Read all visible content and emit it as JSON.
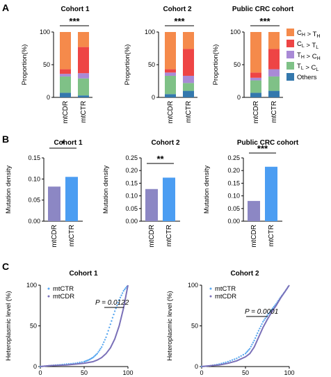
{
  "panels": {
    "A": {
      "label": "A",
      "legend": [
        {
          "main": "C",
          "sub": "H",
          "op": " > ",
          "main2": "T",
          "sub2": "H",
          "color": "#f58a4b"
        },
        {
          "main": "C",
          "sub": "L",
          "op": " > ",
          "main2": "T",
          "sub2": "L",
          "color": "#ee4545"
        },
        {
          "main": "T",
          "sub": "H",
          "op": " > ",
          "main2": "C",
          "sub2": "H",
          "color": "#a98ad6"
        },
        {
          "main": "T",
          "sub": "L",
          "op": " > ",
          "main2": "C",
          "sub2": "L",
          "color": "#7fc187"
        },
        {
          "text": "Others",
          "color": "#3478ad"
        }
      ]
    },
    "B": {
      "label": "B"
    },
    "C": {
      "label": "C"
    }
  },
  "chart_data": [
    {
      "type": "bar",
      "stacked": true,
      "title": "Cohort 1",
      "ylabel": "Proportion(%)",
      "ylim": [
        0,
        100
      ],
      "yticks": [
        "0",
        "50",
        "100"
      ],
      "categories": [
        "mtCDR",
        "mtCTR"
      ],
      "significance": "***",
      "series": [
        {
          "name": "Others",
          "values": [
            7,
            3
          ]
        },
        {
          "name": "TL > CL",
          "values": [
            25,
            26
          ]
        },
        {
          "name": "TH > CH",
          "values": [
            4,
            8
          ]
        },
        {
          "name": "CL > TL",
          "values": [
            7,
            40
          ]
        },
        {
          "name": "CH > TH",
          "values": [
            57,
            23
          ]
        }
      ]
    },
    {
      "type": "bar",
      "stacked": true,
      "title": "Cohort 2",
      "ylabel": "Proportion(%)",
      "ylim": [
        0,
        100
      ],
      "yticks": [
        "0",
        "50",
        "100"
      ],
      "categories": [
        "mtCDR",
        "mtCTR"
      ],
      "significance": "***",
      "series": [
        {
          "name": "Others",
          "values": [
            5,
            10
          ]
        },
        {
          "name": "TL > CL",
          "values": [
            28,
            12
          ]
        },
        {
          "name": "TH > CH",
          "values": [
            5,
            11
          ]
        },
        {
          "name": "CL > TL",
          "values": [
            5,
            41
          ]
        },
        {
          "name": "CH > TH",
          "values": [
            57,
            26
          ]
        }
      ]
    },
    {
      "type": "bar",
      "stacked": true,
      "title": "Public CRC cohort",
      "ylabel": "Proportion(%)",
      "ylim": [
        0,
        100
      ],
      "yticks": [
        "0",
        "50",
        "100"
      ],
      "categories": [
        "mtCDR",
        "mtCTR"
      ],
      "significance": "***",
      "series": [
        {
          "name": "Others",
          "values": [
            7,
            10
          ]
        },
        {
          "name": "TL > CL",
          "values": [
            19,
            22
          ]
        },
        {
          "name": "TH > CH",
          "values": [
            4,
            11
          ]
        },
        {
          "name": "CL > TL",
          "values": [
            8,
            31
          ]
        },
        {
          "name": "CH > TH",
          "values": [
            62,
            26
          ]
        }
      ]
    },
    {
      "type": "bar",
      "title": "Cohort 1",
      "ylabel": "Mutation density",
      "ylim": [
        0,
        0.15
      ],
      "yticks": [
        "0.00",
        "0.05",
        "0.10",
        "0.15"
      ],
      "categories": [
        "mtCDR",
        "mtCTR"
      ],
      "values": [
        0.082,
        0.105
      ],
      "colors": [
        "#8c87c4",
        "#4b9df2"
      ],
      "significance": "*"
    },
    {
      "type": "bar",
      "title": "Cohort 2",
      "ylabel": "Mutation density",
      "ylim": [
        0,
        0.25
      ],
      "yticks": [
        "0.00",
        "0.05",
        "0.10",
        "0.15",
        "0.20",
        "0.25"
      ],
      "categories": [
        "mtCDR",
        "mtCTR"
      ],
      "values": [
        0.127,
        0.172
      ],
      "colors": [
        "#8c87c4",
        "#4b9df2"
      ],
      "significance": "**"
    },
    {
      "type": "bar",
      "title": "Public CRC cohort",
      "ylabel": "Mutation density",
      "ylim": [
        0,
        0.25
      ],
      "yticks": [
        "0.00",
        "0.05",
        "0.10",
        "0.15",
        "0.20",
        "0.25"
      ],
      "categories": [
        "mtCDR",
        "mtCTR"
      ],
      "values": [
        0.08,
        0.215
      ],
      "colors": [
        "#8c87c4",
        "#4b9df2"
      ],
      "significance": "***"
    },
    {
      "type": "line",
      "title": "Cohort 1",
      "xlabel": [
        "Cumulative fraction",
        "of mutations (%)"
      ],
      "ylabel": "Heteroplasmic level (%)",
      "xlim": [
        0,
        100
      ],
      "ylim": [
        0,
        100
      ],
      "xticks": [
        "0",
        "50",
        "100"
      ],
      "yticks": [
        "0",
        "50",
        "100"
      ],
      "pvalue": "P = 0.0122",
      "series": [
        {
          "name": "mtCTR",
          "style": "dots",
          "color": "#5aa8f0",
          "x": [
            0,
            10,
            20,
            30,
            40,
            50,
            55,
            60,
            65,
            70,
            75,
            80,
            85,
            90,
            95,
            100
          ],
          "y": [
            0,
            1,
            2,
            3,
            4,
            6,
            8,
            11,
            16,
            24,
            36,
            52,
            68,
            82,
            93,
            100
          ]
        },
        {
          "name": "mtCDR",
          "style": "line",
          "color": "#7a70b8",
          "x": [
            0,
            10,
            20,
            30,
            40,
            50,
            55,
            60,
            65,
            70,
            75,
            80,
            85,
            90,
            95,
            100
          ],
          "y": [
            0,
            1,
            1.5,
            2,
            3,
            4,
            5,
            6,
            8,
            11,
            16,
            23,
            34,
            50,
            72,
            100
          ]
        }
      ]
    },
    {
      "type": "line",
      "title": "Cohort 2",
      "xlabel": [
        "Cumulative fraction",
        "of mutations (%)"
      ],
      "ylabel": "Heteroplasmic level (%)",
      "xlim": [
        0,
        100
      ],
      "ylim": [
        0,
        100
      ],
      "xticks": [
        "0",
        "50",
        "100"
      ],
      "yticks": [
        "0",
        "50",
        "100"
      ],
      "pvalue": "P = 0.0001",
      "series": [
        {
          "name": "mtCTR",
          "style": "dots",
          "color": "#5aa8f0",
          "x": [
            0,
            10,
            20,
            30,
            40,
            50,
            55,
            60,
            65,
            70,
            75,
            80,
            85,
            90,
            95,
            100
          ],
          "y": [
            0,
            1,
            3,
            6,
            10,
            16,
            22,
            32,
            44,
            55,
            63,
            70,
            77,
            85,
            92,
            100
          ]
        },
        {
          "name": "mtCDR",
          "style": "line",
          "color": "#7a70b8",
          "x": [
            0,
            10,
            20,
            30,
            40,
            50,
            55,
            60,
            65,
            70,
            75,
            80,
            85,
            90,
            95,
            100
          ],
          "y": [
            0,
            1,
            2,
            4,
            7,
            12,
            16,
            24,
            36,
            48,
            58,
            67,
            75,
            84,
            92,
            100
          ]
        }
      ]
    }
  ]
}
